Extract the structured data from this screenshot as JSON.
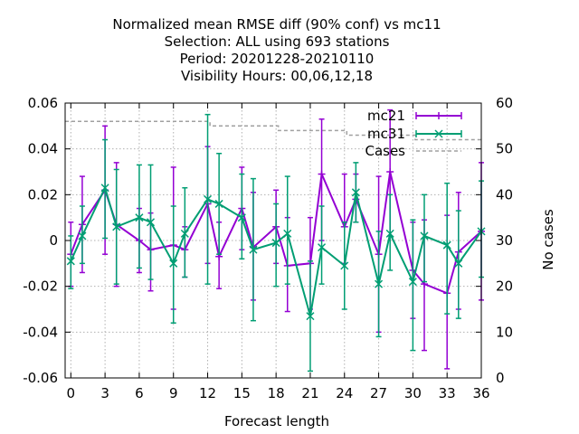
{
  "chart_data": {
    "type": "line",
    "title_lines": [
      "Normalized mean RMSE diff (90% conf) vs mc11",
      "Selection: ALL using   693 stations",
      "Period: 20201228-20210110",
      "Visibility   Hours:  00,06,12,18"
    ],
    "xlabel": "Forecast length",
    "ylabel": "",
    "y2label": "No cases",
    "xlim": [
      -0.5,
      36
    ],
    "ylim": [
      -0.06,
      0.06
    ],
    "y2lim": [
      0,
      60
    ],
    "xticks": [
      0,
      3,
      6,
      9,
      12,
      15,
      18,
      21,
      24,
      27,
      30,
      33,
      36
    ],
    "xtick_labels": [
      "0",
      "3",
      "6",
      "9",
      "12",
      "15",
      "18",
      "21",
      "24",
      "27",
      "30",
      "33",
      "36"
    ],
    "yticks": [
      -0.06,
      -0.04,
      -0.02,
      0,
      0.02,
      0.04,
      0.06
    ],
    "ytick_labels": [
      "-0.06",
      "-0.04",
      "-0.02",
      "0",
      "0.02",
      "0.04",
      "0.06"
    ],
    "y2ticks": [
      0,
      10,
      20,
      30,
      40,
      50,
      60
    ],
    "y2tick_labels": [
      "0",
      "10",
      "20",
      "30",
      "40",
      "50",
      "60"
    ],
    "grid": true,
    "legend_position": "top-right",
    "x": [
      0,
      1,
      3,
      4,
      6,
      7,
      9,
      10,
      12,
      13,
      15,
      16,
      18,
      19,
      21,
      22,
      24,
      25,
      27,
      28,
      30,
      31,
      33,
      34,
      36
    ],
    "series": [
      {
        "name": "mc21",
        "color": "#9400d3",
        "marker": "plus",
        "values": [
          -0.006,
          0.007,
          0.022,
          0.007,
          0.0,
          -0.004,
          -0.002,
          -0.004,
          0.016,
          -0.007,
          0.014,
          -0.003,
          0.006,
          -0.011,
          -0.01,
          0.029,
          0.006,
          0.018,
          -0.006,
          0.03,
          -0.013,
          -0.019,
          -0.023,
          -0.005,
          0.004
        ],
        "err_low": [
          -0.02,
          -0.014,
          -0.006,
          -0.02,
          -0.014,
          -0.022,
          -0.03,
          -0.016,
          -0.01,
          -0.021,
          -0.004,
          -0.026,
          -0.01,
          -0.031,
          -0.03,
          0.0,
          -0.01,
          0.008,
          -0.04,
          0.002,
          -0.034,
          -0.048,
          -0.056,
          -0.03,
          -0.026
        ],
        "err_high": [
          0.008,
          0.028,
          0.05,
          0.034,
          0.014,
          0.012,
          0.032,
          0.006,
          0.041,
          0.008,
          0.032,
          0.021,
          0.022,
          0.01,
          0.01,
          0.053,
          0.029,
          0.029,
          0.028,
          0.057,
          0.008,
          0.009,
          0.011,
          0.021,
          0.034
        ]
      },
      {
        "name": "mc31",
        "color": "#009e73",
        "marker": "cross",
        "values": [
          -0.009,
          0.002,
          0.023,
          0.006,
          0.01,
          0.008,
          -0.01,
          0.003,
          0.018,
          0.016,
          0.01,
          -0.004,
          -0.001,
          0.003,
          -0.033,
          -0.003,
          -0.011,
          0.021,
          -0.019,
          0.003,
          -0.018,
          0.002,
          -0.002,
          -0.01,
          0.004
        ],
        "err_low": [
          -0.021,
          -0.01,
          0.001,
          -0.019,
          -0.012,
          -0.017,
          -0.036,
          -0.016,
          -0.019,
          -0.006,
          -0.008,
          -0.035,
          -0.02,
          -0.019,
          -0.057,
          -0.019,
          -0.03,
          0.008,
          -0.042,
          -0.013,
          -0.048,
          -0.018,
          -0.032,
          -0.034,
          -0.016
        ],
        "err_high": [
          0.002,
          0.015,
          0.044,
          0.031,
          0.033,
          0.033,
          0.015,
          0.023,
          0.055,
          0.038,
          0.029,
          0.027,
          0.016,
          0.028,
          -0.009,
          0.015,
          0.008,
          0.034,
          0.004,
          0.02,
          0.009,
          0.02,
          0.025,
          0.013,
          0.026
        ]
      },
      {
        "name": "Cases",
        "color": "#a0a0a0",
        "style": "dashed",
        "axis": "y2",
        "step_x": [
          -0.5,
          9,
          12.2,
          12.2,
          18.2,
          18.2,
          24.2,
          24.2,
          30.2,
          30.2,
          36
        ],
        "step_values": [
          56,
          56,
          56,
          55,
          55,
          54,
          54,
          53,
          53,
          52,
          52
        ]
      }
    ]
  }
}
